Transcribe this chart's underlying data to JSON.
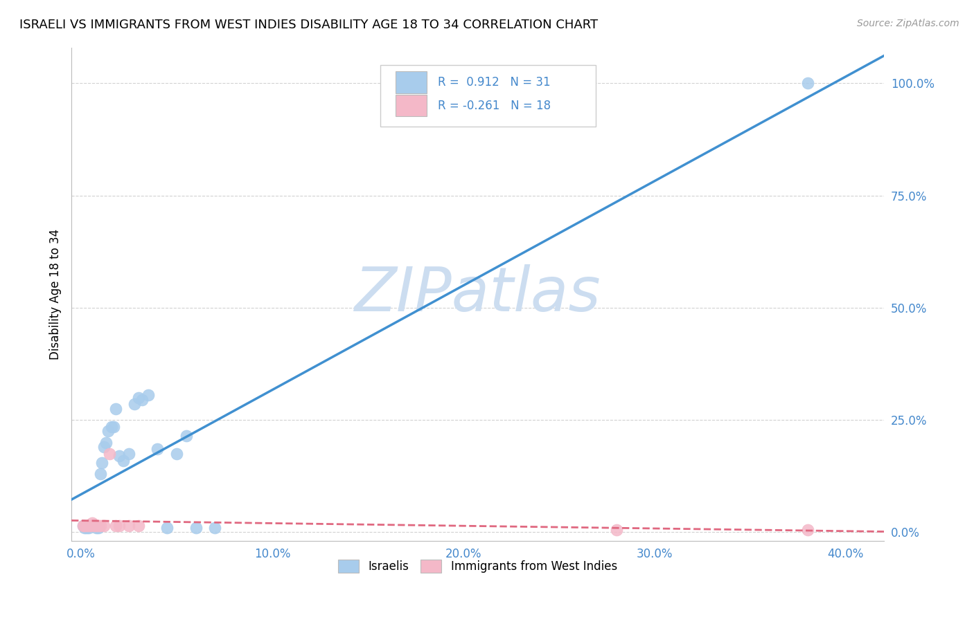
{
  "title": "ISRAELI VS IMMIGRANTS FROM WEST INDIES DISABILITY AGE 18 TO 34 CORRELATION CHART",
  "source": "Source: ZipAtlas.com",
  "ylabel": "Disability Age 18 to 34",
  "xlim": [
    -0.5,
    42
  ],
  "ylim": [
    -2,
    108
  ],
  "x_tick_vals": [
    0,
    10,
    20,
    30,
    40
  ],
  "x_tick_labels": [
    "0.0%",
    "10.0%",
    "20.0%",
    "30.0%",
    "40.0%"
  ],
  "y_tick_vals": [
    0,
    25,
    50,
    75,
    100
  ],
  "y_tick_labels": [
    "0.0%",
    "25.0%",
    "50.0%",
    "75.0%",
    "100.0%"
  ],
  "israeli_R": 0.912,
  "israeli_N": 31,
  "windi_R": -0.261,
  "windi_N": 18,
  "israeli_color": "#a8ccec",
  "windi_color": "#f4b8c8",
  "trendline_israeli_color": "#4090d0",
  "trendline_windi_color": "#e06880",
  "watermark_color": "#ccddf0",
  "background_color": "#ffffff",
  "grid_color": "#cccccc",
  "tick_color": "#4488cc",
  "israeli_x": [
    0.1,
    0.2,
    0.3,
    0.4,
    0.5,
    0.6,
    0.7,
    0.8,
    0.9,
    1.0,
    1.1,
    1.2,
    1.3,
    1.4,
    1.6,
    1.7,
    1.8,
    2.0,
    2.2,
    2.5,
    2.8,
    3.0,
    3.2,
    3.5,
    4.0,
    4.5,
    5.0,
    5.5,
    6.0,
    7.0,
    38.0
  ],
  "israeli_y": [
    1.5,
    1.0,
    1.0,
    1.0,
    1.5,
    1.5,
    1.5,
    1.0,
    1.0,
    13.0,
    15.5,
    19.0,
    20.0,
    22.5,
    23.5,
    23.5,
    27.5,
    17.0,
    16.0,
    17.5,
    28.5,
    30.0,
    29.5,
    30.5,
    18.5,
    1.0,
    17.5,
    21.5,
    1.0,
    1.0,
    100.0
  ],
  "windi_x": [
    0.1,
    0.2,
    0.3,
    0.4,
    0.5,
    0.6,
    0.7,
    0.8,
    0.9,
    1.0,
    1.2,
    1.5,
    2.0,
    2.5,
    3.0,
    28.0,
    38.0,
    1.8
  ],
  "windi_y": [
    1.5,
    1.5,
    1.5,
    1.5,
    1.5,
    2.0,
    1.5,
    1.5,
    1.5,
    1.5,
    1.5,
    17.5,
    1.5,
    1.5,
    1.5,
    0.5,
    0.5,
    1.5
  ]
}
